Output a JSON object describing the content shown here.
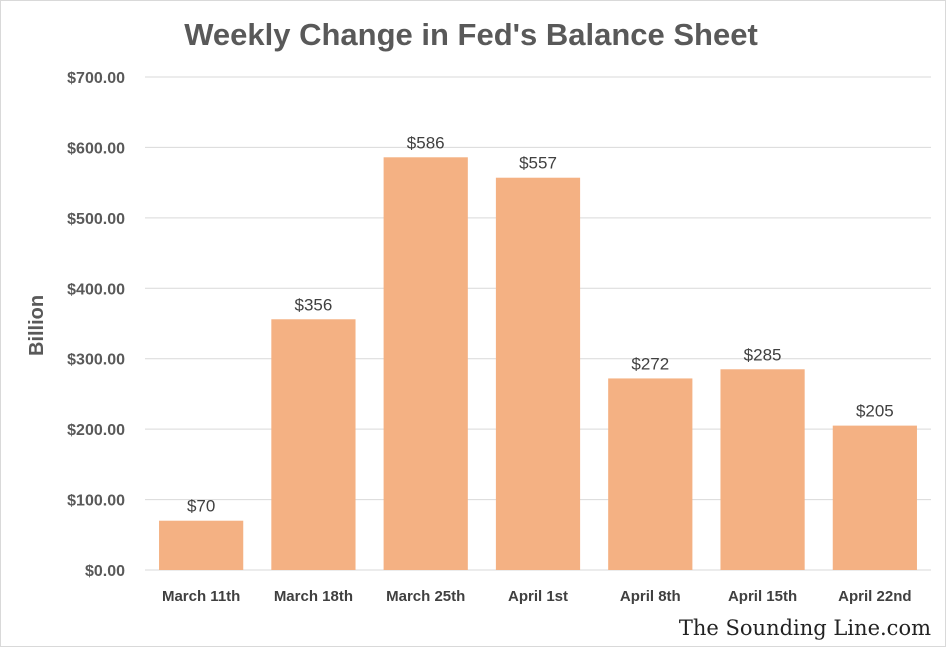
{
  "chart_data": {
    "type": "bar",
    "title": "Weekly Change in Fed's Balance Sheet",
    "xlabel": "",
    "ylabel": "Billion",
    "categories": [
      "March 11th",
      "March 18th",
      "March 25th",
      "April 1st",
      "April 8th",
      "April 15th",
      "April 22nd"
    ],
    "values": [
      70,
      356,
      586,
      557,
      272,
      285,
      205
    ],
    "data_labels": [
      "$70",
      "$356",
      "$586",
      "$557",
      "$272",
      "$285",
      "$205"
    ],
    "ylim": [
      0,
      700
    ],
    "yticks": [
      0,
      100,
      200,
      300,
      400,
      500,
      600,
      700
    ],
    "ytick_labels": [
      "$0.00",
      "$100.00",
      "$200.00",
      "$300.00",
      "$400.00",
      "$500.00",
      "$600.00",
      "$700.00"
    ],
    "grid": true,
    "legend": "none",
    "bar_color": "#F4B183",
    "grid_color": "#d9d9d9"
  },
  "watermark": "The Sounding Line.com"
}
